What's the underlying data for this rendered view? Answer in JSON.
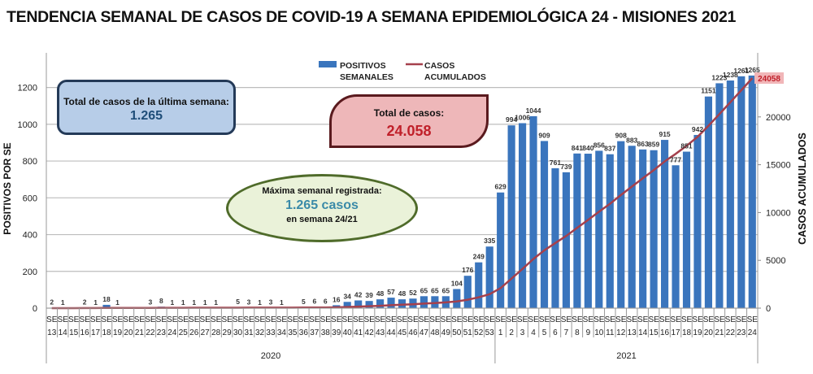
{
  "title": "TENDENCIA SEMANAL DE CASOS DE COVID-19 A SEMANA EPIDEMIOLÓGICA 24 - MISIONES 2021",
  "callouts": {
    "last_week_label": "Total de casos de la última semana:",
    "last_week_value": "1.265",
    "total_label": "Total de casos:",
    "total_value": "24.058",
    "max_label": "Máxima semanal registrada:",
    "max_value": "1.265 casos",
    "max_week": "en semana 24/21"
  },
  "colors": {
    "bars": "#3a75bd",
    "line": "#a5404c",
    "bar_label": "#333333"
  },
  "chart_data": {
    "type": "bar+line",
    "title": "TENDENCIA SEMANAL DE CASOS DE COVID-19 A SEMANA EPIDEMIOLÓGICA 24 - MISIONES 2021",
    "ylabel": "POSITIVOS POR SE",
    "y2label": "CASOS ACUMULADOS",
    "ylim": [
      0,
      1300
    ],
    "y2lim": [
      0,
      25000
    ],
    "yticks": [
      0,
      200,
      400,
      600,
      800,
      1000,
      1200
    ],
    "y2ticks": [
      0,
      5000,
      10000,
      15000,
      20000
    ],
    "legend": {
      "position": "top-center",
      "bars": "POSITIVOS SEMANALES",
      "line": "CASOS ACUMULADOS"
    },
    "groups": [
      {
        "year": "2020",
        "weeks": [
          13,
          14,
          15,
          16,
          17,
          18,
          19,
          20,
          21,
          22,
          23,
          24,
          25,
          26,
          27,
          28,
          29,
          30,
          31,
          32,
          33,
          34,
          35,
          36,
          37,
          38,
          39,
          40,
          41,
          42,
          43,
          44,
          45,
          46,
          47,
          48,
          49,
          50,
          51,
          52,
          53
        ],
        "values": [
          2,
          1,
          0,
          2,
          1,
          18,
          1,
          0,
          0,
          3,
          8,
          1,
          1,
          1,
          1,
          1,
          0,
          5,
          3,
          1,
          3,
          1,
          0,
          5,
          6,
          6,
          16,
          34,
          42,
          39,
          48,
          57,
          48,
          52,
          65,
          65,
          65,
          104,
          176,
          249,
          335
        ]
      },
      {
        "year": "2021",
        "weeks": [
          1,
          2,
          3,
          4,
          5,
          6,
          7,
          8,
          9,
          10,
          11,
          12,
          13,
          14,
          15,
          16,
          17,
          18,
          19,
          20,
          21,
          22,
          23,
          24
        ],
        "values": [
          629,
          994,
          1006,
          1044,
          909,
          761,
          739,
          841,
          840,
          856,
          837,
          908,
          883,
          863,
          859,
          915,
          777,
          851,
          942,
          1151,
          1223,
          1238,
          1261,
          1265
        ]
      }
    ],
    "week_prefix": "SE",
    "final_cumulative_label": "24058"
  }
}
